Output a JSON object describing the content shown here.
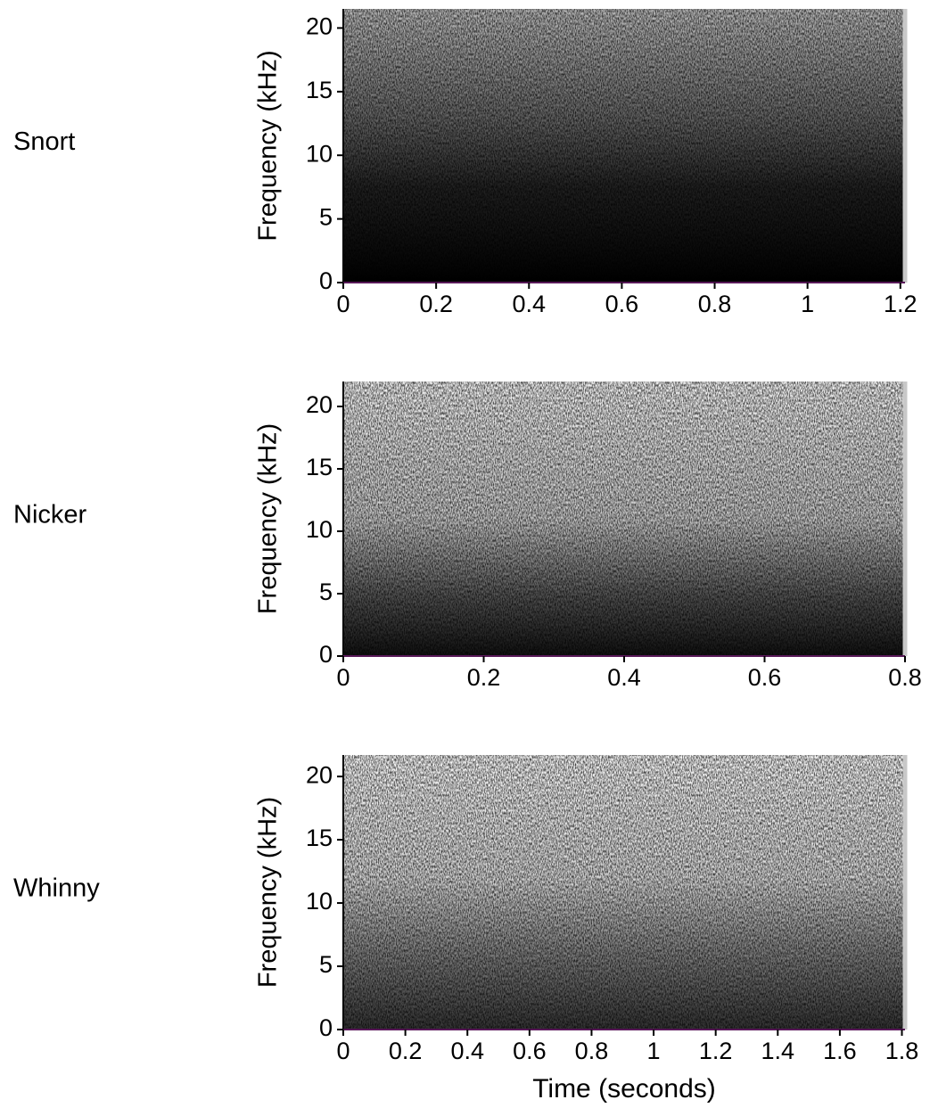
{
  "chart_data": [
    {
      "type": "spectrogram",
      "label": "Snort",
      "ylabel": "Frequency (kHz)",
      "xlim": [
        0,
        1.21
      ],
      "xticks": [
        0,
        0.2,
        0.4,
        0.6,
        0.8,
        1,
        1.2
      ],
      "ylim": [
        0,
        21.5
      ],
      "yticks": [
        0,
        5,
        10,
        15,
        20
      ]
    },
    {
      "type": "spectrogram",
      "label": "Nicker",
      "ylabel": "Frequency (kHz)",
      "xlim": [
        0,
        0.8
      ],
      "xticks": [
        0,
        0.2,
        0.4,
        0.6,
        0.8
      ],
      "ylim": [
        0,
        22
      ],
      "yticks": [
        0,
        5,
        10,
        15,
        20
      ]
    },
    {
      "type": "spectrogram",
      "label": "Whinny",
      "ylabel": "Frequency (kHz)",
      "xlabel": "Time (seconds)",
      "xlim": [
        0,
        1.81
      ],
      "xticks": [
        0,
        0.2,
        0.4,
        0.6,
        0.8,
        1,
        1.2,
        1.4,
        1.6,
        1.8
      ],
      "ylim": [
        0,
        21.7
      ],
      "yticks": [
        0,
        5,
        10,
        15,
        20
      ]
    }
  ]
}
